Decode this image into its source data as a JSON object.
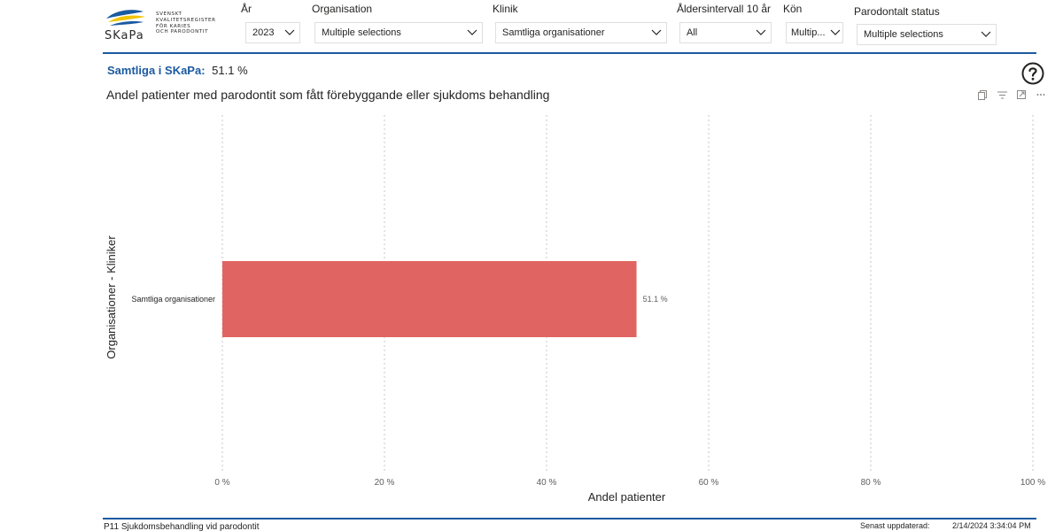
{
  "logo": {
    "wordmark": "SKaPa",
    "text_lines": [
      "SVENSKT",
      "KVALITETSREGISTER",
      "FÖR KARIES",
      "OCH PARODONTIT"
    ],
    "colors": {
      "blue": "#1b5aa0",
      "yellow": "#f3c300"
    }
  },
  "filters": [
    {
      "label": "År",
      "value": "2023"
    },
    {
      "label": "Organisation",
      "value": "Multiple selections"
    },
    {
      "label": "Klinik",
      "value": "Samtliga organisationer"
    },
    {
      "label": "Åldersintervall 10 år",
      "value": "All"
    },
    {
      "label": "Kön",
      "value": "Multip..."
    },
    {
      "label": "Parodontalt status",
      "value": "Multiple selections"
    }
  ],
  "kpi": {
    "label": "Samtliga i SKaPa:",
    "value": "51.1 %"
  },
  "help": {
    "icon": "question-circle-icon"
  },
  "visual": {
    "title": "Andel patienter med parodontit som fått förebyggande eller sjukdoms behandling",
    "tools": [
      "copy-icon",
      "filter-icon",
      "focus-mode-icon",
      "more-options-icon"
    ]
  },
  "chart_data": {
    "type": "bar",
    "orientation": "horizontal",
    "categories": [
      "Samtliga organisationer"
    ],
    "values": [
      51.1
    ],
    "data_labels": [
      "51.1 %"
    ],
    "xlabel": "Andel patienter",
    "ylabel": "Organisationer - Kliniker",
    "xlim": [
      0,
      100
    ],
    "x_ticks": [
      0,
      20,
      40,
      60,
      80,
      100
    ],
    "x_tick_labels": [
      "0 %",
      "20 %",
      "40 %",
      "60 %",
      "80 %",
      "100 %"
    ],
    "grid": "vertical dotted",
    "bar_color": "#e06562"
  },
  "footer": {
    "page_name": "P11 Sjukdomsbehandling vid parodontit",
    "updated_label": "Senast uppdaterad:",
    "updated_value": "2/14/2024 3:34:04 PM"
  },
  "colors": {
    "accent": "#1b5aa0",
    "bar": "#e06562",
    "grid": "#c8c6c4"
  }
}
